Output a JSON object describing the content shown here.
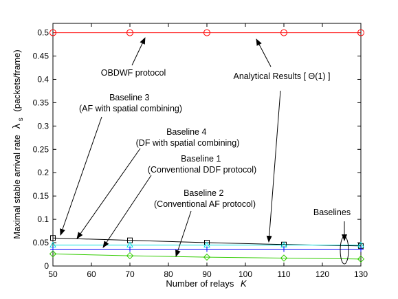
{
  "chart_data": {
    "type": "line",
    "xlabel": "Number of relays",
    "xlabel_symbol": "K",
    "ylabel": "Maximal stable arrival rate",
    "ylabel_symbol": "λ",
    "ylabel_subscript": "s",
    "ylabel_units": "(packets/frame)",
    "xlim": [
      50,
      130
    ],
    "ylim": [
      0,
      0.52
    ],
    "xticks": [
      50,
      60,
      70,
      80,
      90,
      100,
      110,
      120,
      130
    ],
    "yticks": [
      0,
      0.05,
      0.1,
      0.15,
      0.2,
      0.25,
      0.3,
      0.35,
      0.4,
      0.45,
      0.5
    ],
    "grid": false,
    "series": [
      {
        "name": "OBDWF protocol",
        "color": "#ff0000",
        "marker": "circle",
        "x": [
          50,
          70,
          90,
          110,
          130
        ],
        "values": [
          0.5,
          0.5,
          0.5,
          0.5,
          0.5
        ]
      },
      {
        "name": "Baseline 3",
        "color": "#000000",
        "marker": "square",
        "x": [
          50,
          70,
          90,
          110,
          130
        ],
        "values": [
          0.06,
          0.055,
          0.05,
          0.046,
          0.043
        ]
      },
      {
        "name": "Baseline 4",
        "color": "#00dddd",
        "marker": "triangle",
        "x": [
          50,
          70,
          90,
          110,
          130
        ],
        "values": [
          0.045,
          0.045,
          0.045,
          0.045,
          0.045
        ]
      },
      {
        "name": "Baseline 1",
        "color": "#0000ff",
        "marker": "plus",
        "x": [
          50,
          70,
          90,
          110,
          130
        ],
        "values": [
          0.036,
          0.036,
          0.036,
          0.036,
          0.036
        ]
      },
      {
        "name": "Baseline 2",
        "color": "#33cc00",
        "marker": "diamond",
        "x": [
          50,
          70,
          90,
          110,
          130
        ],
        "values": [
          0.026,
          0.022,
          0.019,
          0.017,
          0.015
        ]
      }
    ],
    "annotations": [
      {
        "id": "obdwf",
        "lines": [
          "OBDWF protocol"
        ]
      },
      {
        "id": "analytical",
        "lines": [
          "Analytical Results [ Θ(1) ]"
        ]
      },
      {
        "id": "baseline3",
        "lines": [
          "Baseline 3",
          "(AF with spatial combining)"
        ]
      },
      {
        "id": "baseline4",
        "lines": [
          "Baseline 4",
          "(DF with spatial combining)"
        ]
      },
      {
        "id": "baseline1",
        "lines": [
          "Baseline 1",
          "(Conventional DDF protocol)"
        ]
      },
      {
        "id": "baseline2",
        "lines": [
          "Baseline 2",
          "(Conventional AF protocol)"
        ]
      },
      {
        "id": "baselines",
        "lines": [
          "Baselines"
        ]
      }
    ]
  }
}
